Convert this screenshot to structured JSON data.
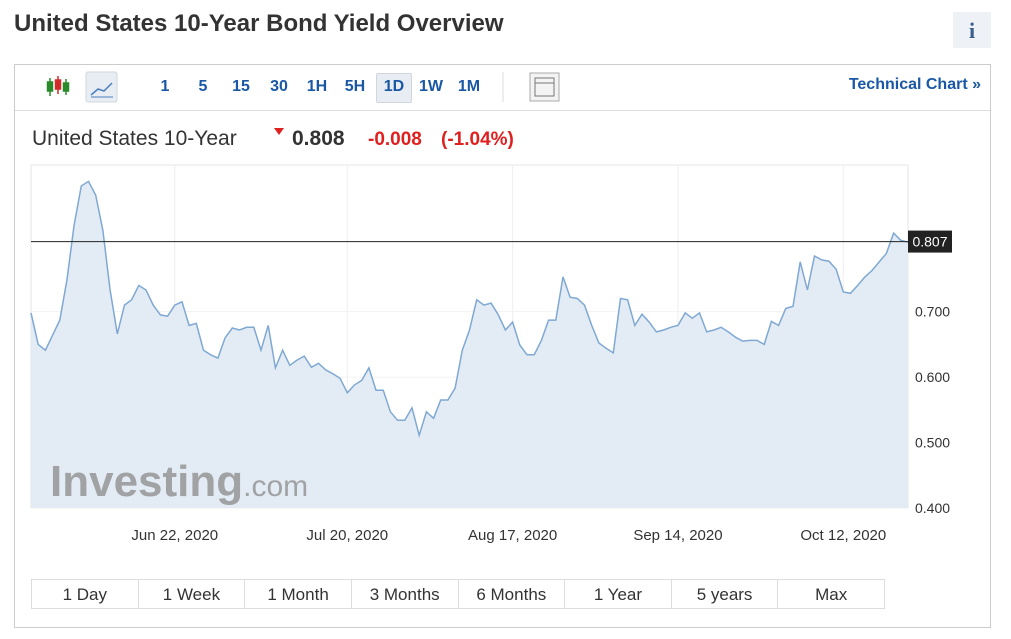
{
  "title": "United States 10-Year Bond Yield Overview",
  "info": "i",
  "intervals": [
    "1",
    "5",
    "15",
    "30",
    "1H",
    "5H",
    "1D",
    "1W",
    "1M"
  ],
  "technical_chart": "Technical Chart »",
  "quote": {
    "name": "United States 10-Year",
    "price": "0.808",
    "change": "-0.008",
    "change_pct": "(-1.04%)"
  },
  "chart_data": {
    "type": "area",
    "color": "#7fa8d2",
    "fill": "#e3ecf4",
    "watermark": "Investing",
    "watermark_suffix": ".com",
    "values": [
      0.698,
      0.65,
      0.641,
      0.664,
      0.687,
      0.748,
      0.832,
      0.892,
      0.899,
      0.878,
      0.824,
      0.733,
      0.666,
      0.71,
      0.718,
      0.74,
      0.733,
      0.71,
      0.695,
      0.693,
      0.71,
      0.715,
      0.679,
      0.682,
      0.641,
      0.634,
      0.629,
      0.66,
      0.675,
      0.672,
      0.676,
      0.676,
      0.641,
      0.679,
      0.614,
      0.641,
      0.618,
      0.626,
      0.632,
      0.615,
      0.621,
      0.611,
      0.605,
      0.598,
      0.576,
      0.588,
      0.595,
      0.614,
      0.58,
      0.58,
      0.547,
      0.534,
      0.534,
      0.553,
      0.511,
      0.547,
      0.537,
      0.565,
      0.565,
      0.583,
      0.641,
      0.672,
      0.718,
      0.71,
      0.713,
      0.695,
      0.672,
      0.684,
      0.649,
      0.634,
      0.634,
      0.656,
      0.687,
      0.687,
      0.753,
      0.722,
      0.72,
      0.71,
      0.679,
      0.652,
      0.644,
      0.637,
      0.72,
      0.718,
      0.679,
      0.696,
      0.684,
      0.669,
      0.672,
      0.676,
      0.679,
      0.698,
      0.69,
      0.698,
      0.669,
      0.672,
      0.676,
      0.669,
      0.661,
      0.655,
      0.656,
      0.656,
      0.65,
      0.685,
      0.679,
      0.705,
      0.708,
      0.776,
      0.733,
      0.785,
      0.779,
      0.777,
      0.765,
      0.73,
      0.728,
      0.74,
      0.753,
      0.763,
      0.776,
      0.789,
      0.82,
      0.809,
      0.806
    ],
    "xlim": [
      0,
      122
    ],
    "xticks": [
      {
        "value": 20,
        "label": "Jun 22, 2020"
      },
      {
        "value": 44,
        "label": "Jul 20, 2020"
      },
      {
        "value": 67,
        "label": "Aug 17, 2020"
      },
      {
        "value": 90,
        "label": "Sep 14, 2020"
      },
      {
        "value": 113,
        "label": "Oct 12, 2020"
      }
    ],
    "ylim": [
      0.4,
      0.924
    ],
    "yticks": [
      {
        "value": 0.4,
        "label": "0.400"
      },
      {
        "value": 0.5,
        "label": "0.500"
      },
      {
        "value": 0.6,
        "label": "0.600"
      },
      {
        "value": 0.7,
        "label": "0.700"
      }
    ],
    "last_value": 0.807,
    "grid": true
  },
  "ranges": [
    "1 Day",
    "1 Week",
    "1 Month",
    "3 Months",
    "6 Months",
    "1 Year",
    "5 years",
    "Max"
  ]
}
